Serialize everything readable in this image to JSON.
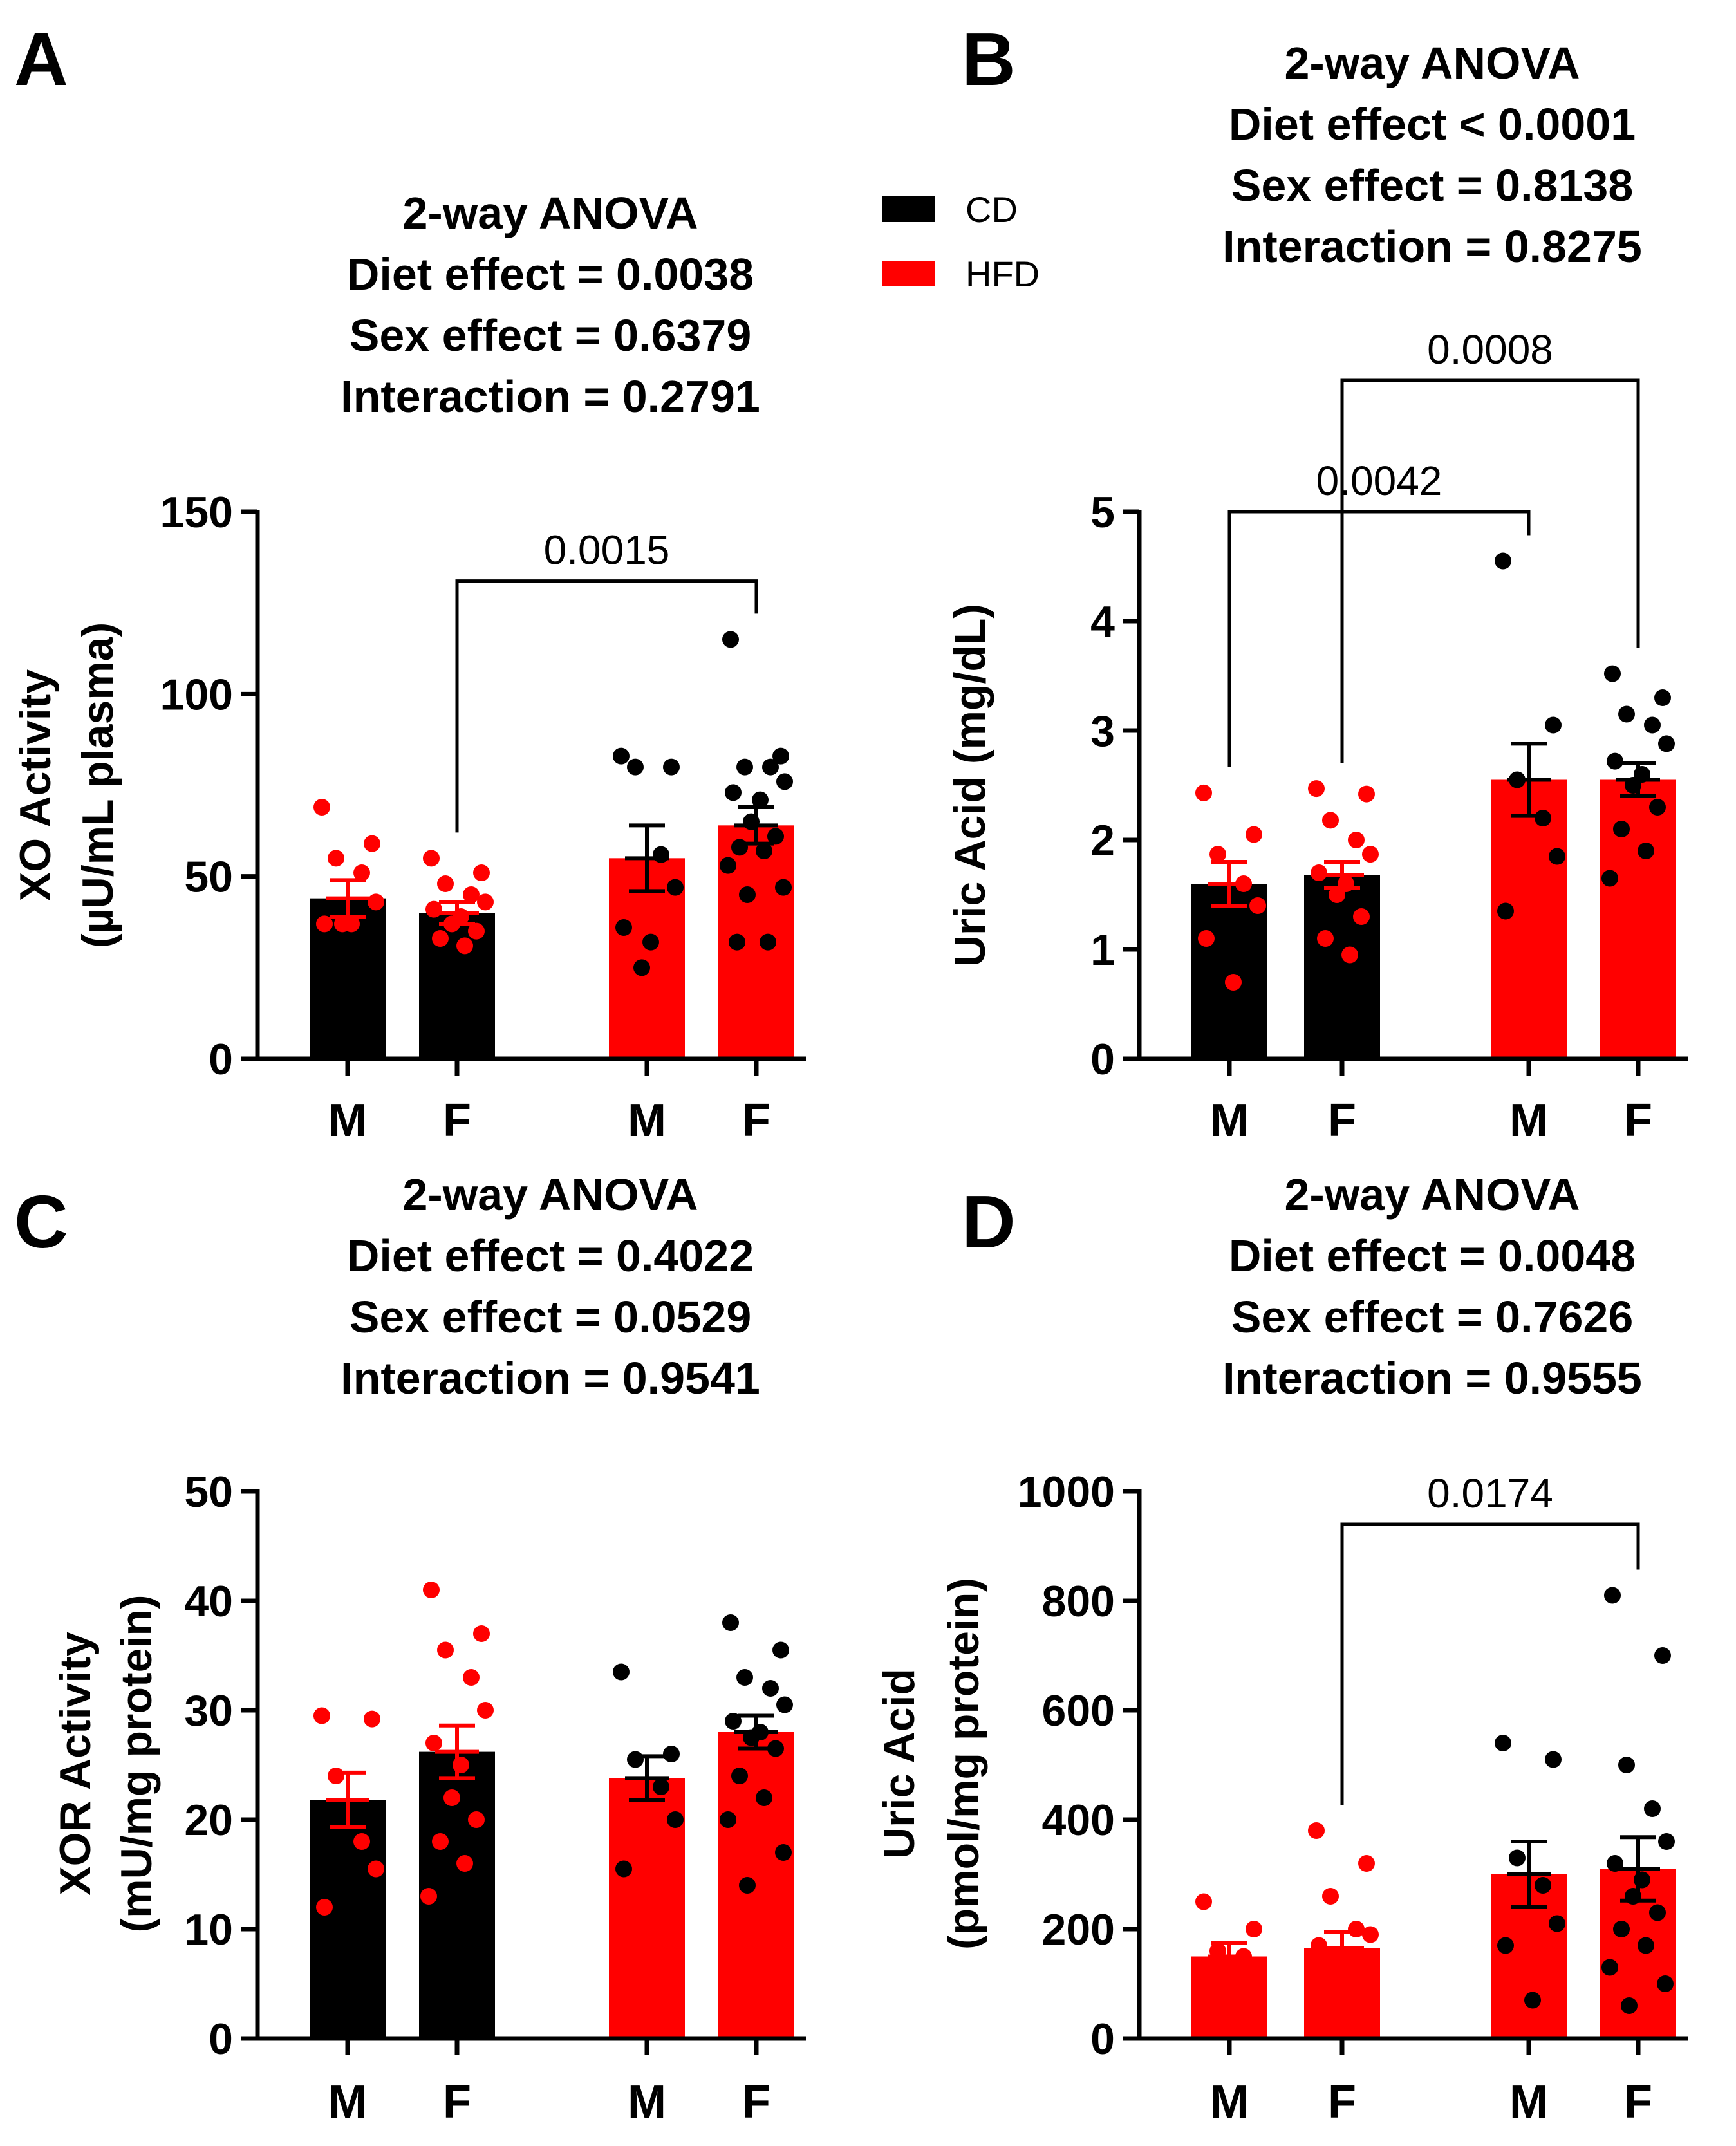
{
  "legend": {
    "items": [
      {
        "label": "CD",
        "color": "#000000"
      },
      {
        "label": "HFD",
        "color": "#ff0000"
      }
    ]
  },
  "chart_data": [
    {
      "type": "bar",
      "panel": "A",
      "anova": [
        "2-way ANOVA",
        "Diet effect = 0.0038",
        "Sex effect = 0.6379",
        "Interaction = 0.2791"
      ],
      "ylabel_lines": [
        "XO Activity",
        "(µU/mL plasma)"
      ],
      "ylim": [
        0,
        150
      ],
      "yticks": [
        0,
        50,
        100,
        150
      ],
      "ytick_labels": [
        "0",
        "50",
        "100",
        "150"
      ],
      "categories": [
        "M",
        "F",
        "M",
        "F"
      ],
      "groups": [
        "CD",
        "CD",
        "HFD",
        "HFD"
      ],
      "bar_colors": [
        "#000000",
        "#000000",
        "#ff0000",
        "#ff0000"
      ],
      "point_colors": [
        "#ff0000",
        "#ff0000",
        "#000000",
        "#000000"
      ],
      "values": [
        44,
        40,
        55,
        64
      ],
      "sem": [
        5,
        3,
        9,
        5
      ],
      "points": [
        [
          69,
          59,
          55,
          51,
          43,
          37,
          37,
          37
        ],
        [
          55,
          51,
          48,
          45,
          43,
          41,
          39,
          37,
          35,
          33,
          31
        ],
        [
          83,
          80,
          80,
          56,
          47,
          36,
          32,
          25
        ],
        [
          115,
          83,
          80,
          80,
          76,
          73,
          71,
          65,
          61,
          58,
          57,
          53,
          47,
          45,
          32,
          32
        ]
      ],
      "comparisons": [
        {
          "from": 1,
          "to": 3,
          "label": "0.0015",
          "y": 131
        }
      ]
    },
    {
      "type": "bar",
      "panel": "B",
      "anova": [
        "2-way ANOVA",
        "Diet effect < 0.0001",
        "Sex effect = 0.8138",
        "Interaction = 0.8275"
      ],
      "ylabel_lines": [
        "Uric Acid (mg/dL)"
      ],
      "ylim": [
        0,
        5
      ],
      "yticks": [
        0,
        1,
        2,
        3,
        4,
        5
      ],
      "ytick_labels": [
        "0",
        "1",
        "2",
        "3",
        "4",
        "5"
      ],
      "categories": [
        "M",
        "F",
        "M",
        "F"
      ],
      "groups": [
        "CD",
        "CD",
        "HFD",
        "HFD"
      ],
      "bar_colors": [
        "#000000",
        "#000000",
        "#ff0000",
        "#ff0000"
      ],
      "point_colors": [
        "#ff0000",
        "#ff0000",
        "#000000",
        "#000000"
      ],
      "values": [
        1.6,
        1.68,
        2.55,
        2.55
      ],
      "sem": [
        0.2,
        0.12,
        0.33,
        0.15
      ],
      "points": [
        [
          2.43,
          2.05,
          1.87,
          1.6,
          1.4,
          1.1,
          0.7
        ],
        [
          2.47,
          2.42,
          2.18,
          2.0,
          1.87,
          1.7,
          1.6,
          1.5,
          1.3,
          1.1,
          0.95
        ],
        [
          4.55,
          3.05,
          2.55,
          2.2,
          1.85,
          1.35
        ],
        [
          3.52,
          3.3,
          3.15,
          3.05,
          2.88,
          2.72,
          2.6,
          2.5,
          2.3,
          2.1,
          1.9,
          1.65
        ]
      ],
      "comparisons": [
        {
          "from": 0,
          "to": 2,
          "label": "0.0042",
          "y": 5.0
        },
        {
          "from": 1,
          "to": 3,
          "label": "0.0008",
          "y": 6.2
        }
      ]
    },
    {
      "type": "bar",
      "panel": "C",
      "anova": [
        "2-way ANOVA",
        "Diet effect = 0.4022",
        "Sex effect = 0.0529",
        "Interaction = 0.9541"
      ],
      "ylabel_lines": [
        "XOR Activity",
        "(mU/mg protein)"
      ],
      "ylim": [
        0,
        50
      ],
      "yticks": [
        0,
        10,
        20,
        30,
        40,
        50
      ],
      "ytick_labels": [
        "0",
        "10",
        "20",
        "30",
        "40",
        "50"
      ],
      "categories": [
        "M",
        "F",
        "M",
        "F"
      ],
      "groups": [
        "CD",
        "CD",
        "HFD",
        "HFD"
      ],
      "bar_colors": [
        "#000000",
        "#000000",
        "#ff0000",
        "#ff0000"
      ],
      "point_colors": [
        "#ff0000",
        "#ff0000",
        "#000000",
        "#000000"
      ],
      "values": [
        21.8,
        26.2,
        23.8,
        28.0
      ],
      "sem": [
        2.5,
        2.4,
        2.0,
        1.5
      ],
      "points": [
        [
          29.5,
          29.2,
          24,
          18,
          15.5,
          12
        ],
        [
          41,
          37,
          35.5,
          33,
          30,
          27,
          25,
          22,
          20,
          18,
          16,
          13
        ],
        [
          33.5,
          26,
          25.5,
          23,
          20,
          15.5
        ],
        [
          38,
          35.5,
          33,
          32,
          30.5,
          29,
          28,
          27.5,
          26.5,
          24,
          22,
          20,
          17,
          14
        ]
      ],
      "comparisons": []
    },
    {
      "type": "bar",
      "panel": "D",
      "anova": [
        "2-way ANOVA",
        "Diet effect = 0.0048",
        "Sex effect = 0.7626",
        "Interaction = 0.9555"
      ],
      "ylabel_lines": [
        "Uric Acid",
        "(pmol/mg protein)"
      ],
      "ylim": [
        0,
        1000
      ],
      "yticks": [
        0,
        200,
        400,
        600,
        800,
        1000
      ],
      "ytick_labels": [
        "0",
        "200",
        "400",
        "600",
        "800",
        "1000"
      ],
      "categories": [
        "M",
        "F",
        "M",
        "F"
      ],
      "groups": [
        "CD",
        "CD",
        "HFD",
        "HFD"
      ],
      "bar_colors": [
        "#ff0000",
        "#ff0000",
        "#ff0000",
        "#ff0000"
      ],
      "point_colors": [
        "#ff0000",
        "#ff0000",
        "#000000",
        "#000000"
      ],
      "values": [
        150,
        165,
        300,
        310
      ],
      "sem": [
        25,
        30,
        60,
        58
      ],
      "points": [
        [
          250,
          200,
          160,
          150,
          130,
          60
        ],
        [
          380,
          320,
          260,
          200,
          190,
          170,
          150,
          130,
          110,
          90,
          70,
          60
        ],
        [
          540,
          510,
          330,
          280,
          210,
          170,
          70
        ],
        [
          810,
          700,
          500,
          420,
          360,
          320,
          290,
          260,
          230,
          200,
          170,
          130,
          100,
          60
        ]
      ],
      "comparisons": [
        {
          "from": 1,
          "to": 3,
          "label": "0.0174",
          "y": 940
        }
      ]
    }
  ]
}
